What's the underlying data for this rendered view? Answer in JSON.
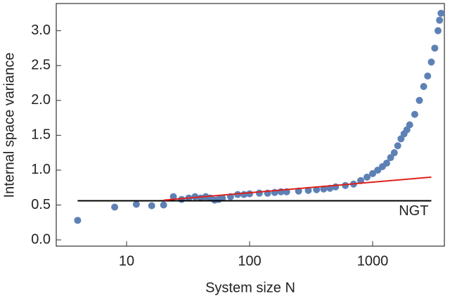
{
  "chart_data": {
    "type": "scatter",
    "x_label": "System size N",
    "y_label": "Internal space variance",
    "xscale": "log",
    "xlim": [
      2.68,
      3830
    ],
    "ylim": [
      -0.09,
      3.39
    ],
    "xticks": [
      10,
      100,
      1000
    ],
    "yticks": [
      {
        "value": 0,
        "label": "0.0"
      },
      0.5,
      {
        "value": 1,
        "label": "1.0"
      },
      1.5,
      {
        "value": 2,
        "label": "2.0"
      },
      2.5,
      {
        "value": 3,
        "label": "3.0"
      }
    ],
    "series": [
      {
        "color": "#5e81b5",
        "x": [
          4,
          8,
          12,
          16,
          20,
          24,
          28,
          32,
          36,
          40,
          44,
          48,
          52,
          56,
          60,
          70,
          80,
          90,
          100,
          120,
          140,
          160,
          180,
          200,
          250,
          300,
          350,
          400,
          450,
          500,
          600,
          700,
          800,
          900,
          1000,
          1100,
          1200,
          1300,
          1400,
          1500,
          1600,
          1700,
          1800,
          1900,
          2000,
          2200,
          2400,
          2600,
          2800,
          3000,
          3200,
          3400,
          3500,
          3600
        ],
        "values": [
          0.28,
          0.47,
          0.51,
          0.49,
          0.5,
          0.62,
          0.58,
          0.6,
          0.62,
          0.6,
          0.62,
          0.6,
          0.57,
          0.58,
          0.6,
          0.62,
          0.65,
          0.65,
          0.66,
          0.67,
          0.67,
          0.68,
          0.69,
          0.69,
          0.7,
          0.71,
          0.72,
          0.73,
          0.74,
          0.76,
          0.78,
          0.8,
          0.85,
          0.9,
          0.95,
          1.0,
          1.05,
          1.1,
          1.18,
          1.25,
          1.35,
          1.45,
          1.52,
          1.58,
          1.65,
          1.8,
          2.0,
          2.2,
          2.35,
          2.55,
          2.75,
          3.0,
          3.15,
          3.25
        ]
      }
    ],
    "lines": [
      {
        "name": "NGT",
        "color": "#000000",
        "x": [
          4,
          3000
        ],
        "values": [
          0.56,
          0.56
        ]
      },
      {
        "color": "#e0201b",
        "x": [
          20,
          3000
        ],
        "values": [
          0.57,
          0.9
        ]
      }
    ]
  }
}
